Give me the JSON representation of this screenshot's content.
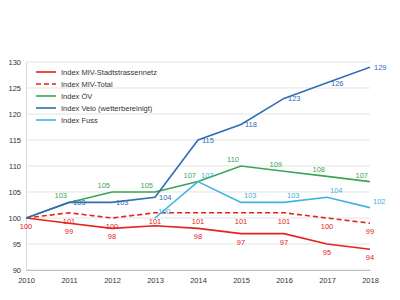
{
  "chart_data": {
    "type": "line",
    "x": [
      2010,
      2011,
      2012,
      2013,
      2014,
      2015,
      2016,
      2017,
      2018
    ],
    "xlim": [
      2010,
      2018
    ],
    "xticks": [
      2010,
      2011,
      2012,
      2013,
      2014,
      2015,
      2016,
      2017,
      2018
    ],
    "ylim": [
      90,
      130
    ],
    "yticks": [
      90,
      95,
      100,
      105,
      110,
      115,
      120,
      125,
      130
    ],
    "grid": true,
    "legend": "upper left",
    "data_labels": true,
    "series": [
      {
        "name": "Index MIV-Stadtstrassennetz",
        "color": "#e3241b",
        "line_style": "solid",
        "values": [
          100,
          99,
          98,
          98.5,
          98,
          97,
          97,
          95,
          94
        ],
        "value_labels": [
          "100",
          "99",
          "98",
          null,
          "98",
          "97",
          "97",
          "95",
          "94"
        ]
      },
      {
        "name": "Index MIV-Total",
        "color": "#e3241b",
        "line_style": "dashed",
        "values": [
          100,
          101,
          100,
          101,
          101,
          101,
          101,
          100,
          99
        ],
        "value_labels": [
          null,
          "101",
          "100",
          "101",
          "101",
          "101",
          "101",
          "100",
          "99"
        ]
      },
      {
        "name": "Index ÖV",
        "color": "#3aa655",
        "line_style": "solid",
        "values": [
          100,
          103,
          105,
          105,
          107,
          110,
          109,
          108,
          107
        ],
        "value_labels": [
          null,
          "103",
          "105",
          "105",
          "107",
          "110",
          "109",
          "108",
          "107"
        ]
      },
      {
        "name": "Index Velo (wetterbereinigt)",
        "color": "#2f6db5",
        "line_style": "solid",
        "values": [
          100,
          103,
          103,
          104,
          115,
          118,
          123,
          126,
          129
        ],
        "value_labels": [
          null,
          "103",
          "103",
          "104",
          "115",
          "118",
          "123",
          "126",
          "129"
        ]
      },
      {
        "name": "Index Fuss",
        "color": "#3fb3e0",
        "line_style": "solid",
        "values": [
          null,
          null,
          null,
          100,
          107,
          103,
          103,
          104,
          102
        ],
        "value_labels": [
          null,
          null,
          null,
          "100",
          "107",
          "103",
          "103",
          "104",
          "102"
        ]
      }
    ]
  }
}
